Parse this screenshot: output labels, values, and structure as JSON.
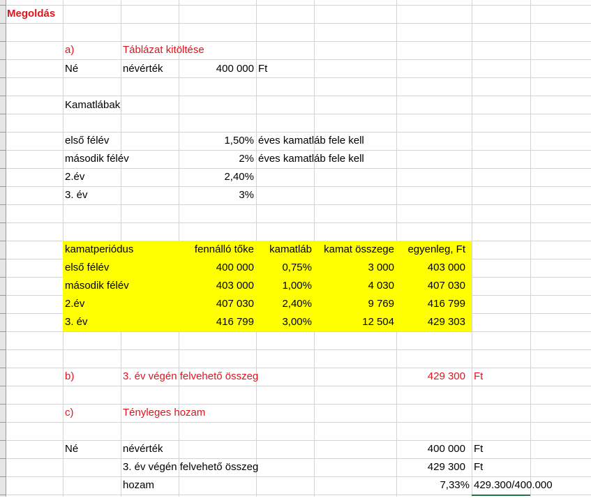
{
  "title": "Megoldás",
  "a": {
    "label": "a)",
    "heading": "Táblázat kitöltése",
    "ne": "Né",
    "nevertek": "névérték",
    "value": "400 000",
    "unit": "Ft"
  },
  "kamatlabak": {
    "heading": "Kamatlábak",
    "rows": [
      {
        "name": "első félév",
        "rate": "1,50%",
        "note": "éves kamatláb fele kell"
      },
      {
        "name": "második félév",
        "rate": "2%",
        "note": "éves kamatláb fele kell"
      },
      {
        "name": "2.év",
        "rate": "2,40%",
        "note": ""
      },
      {
        "name": "3. év",
        "rate": "3%",
        "note": ""
      }
    ]
  },
  "table": {
    "headers": [
      "kamatperiódus",
      "fennálló tőke",
      "kamatláb",
      "kamat összege",
      "egyenleg, Ft"
    ],
    "rows": [
      [
        "első félév",
        "400 000",
        "0,75%",
        "3 000",
        "403 000"
      ],
      [
        "második félév",
        "403 000",
        "1,00%",
        "4 030",
        "407 030"
      ],
      [
        "2.év",
        "407 030",
        "2,40%",
        "9 769",
        "416 799"
      ],
      [
        "3. év",
        "416 799",
        "3,00%",
        "12 504",
        "429 303"
      ]
    ],
    "highlight_color": "#ffff00"
  },
  "b": {
    "label": "b)",
    "text": "3. év végén felvehető összeg",
    "value": "429 300",
    "unit": "Ft"
  },
  "c": {
    "label": "c)",
    "heading": "Tényleges hozam",
    "ne": "Né",
    "nevertek": "névérték",
    "nevertek_value": "400 000",
    "nevertek_unit": "Ft",
    "felveheto": "3. év végén felvehető összeg",
    "felveheto_value": "429 300",
    "felveheto_unit": "Ft",
    "hozam": "hozam",
    "hozam_value": "7,33%",
    "hozam_formula": "429.300/400.000"
  },
  "colors": {
    "red_text": "#e0141e",
    "gridline": "#d4d4d4",
    "selection": "#217346"
  }
}
